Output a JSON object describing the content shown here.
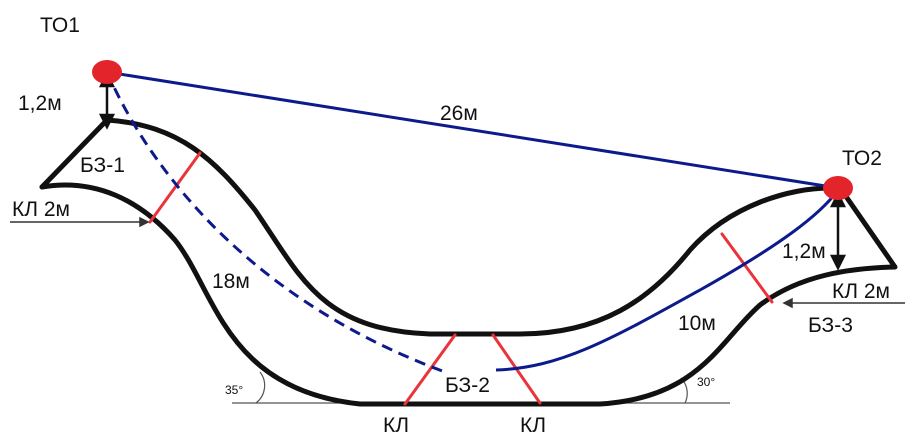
{
  "labels": {
    "to1": "ТО1",
    "to2": "ТО2",
    "height_left": "1,2м",
    "height_right": "1,2м",
    "dist_top": "26м",
    "dist_left": "18м",
    "dist_right": "10м",
    "bz1": "БЗ-1",
    "bz2": "БЗ-2",
    "bz3": "БЗ-3",
    "kl_left": "КЛ 2м",
    "kl_right": "КЛ 2м",
    "kl_bottom_left": "КЛ",
    "kl_bottom_right": "КЛ",
    "angle_left": "35°",
    "angle_right": "30°"
  },
  "colors": {
    "track": "#111111",
    "blue_line": "#0d1a8c",
    "red_marker": "#e3242b",
    "red_cut": "#e8343a",
    "angle_line": "#555555"
  }
}
